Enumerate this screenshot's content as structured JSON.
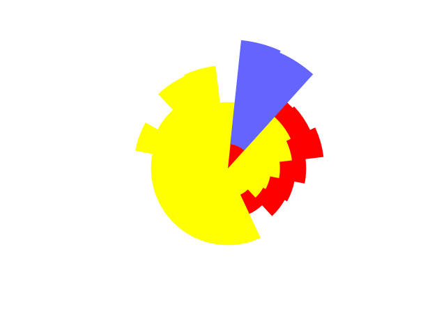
{
  "chart_data": {
    "type": "stacked-polar-bar",
    "sectors": 20,
    "rings": [
      "yellow",
      "red",
      "blue"
    ],
    "angles": [
      -90,
      -72,
      -54,
      -36,
      -18,
      0,
      18,
      36,
      54,
      72,
      90,
      108,
      126,
      144,
      162,
      180,
      198,
      216,
      234,
      252
    ],
    "series": [
      {
        "color": "#ffff00",
        "values": [
          95,
          100,
          100,
          100,
          93,
          75,
          62,
          58,
          42,
          110,
          110,
          110,
          110,
          110,
          110,
          110,
          135,
          115,
          146,
          148
        ]
      },
      {
        "color": "#ff0000",
        "values": [
          0,
          0,
          27,
          30,
          45,
          37,
          35,
          35,
          30,
          0,
          0,
          0,
          0,
          0,
          0,
          0,
          0,
          0,
          0,
          0
        ]
      },
      {
        "color": "#6464ff",
        "values": [
          0,
          0,
          0,
          0,
          0,
          0,
          0,
          0,
          0,
          0,
          0,
          0,
          0,
          0,
          0,
          0,
          0,
          0,
          0,
          0
        ]
      }
    ]
  }
}
